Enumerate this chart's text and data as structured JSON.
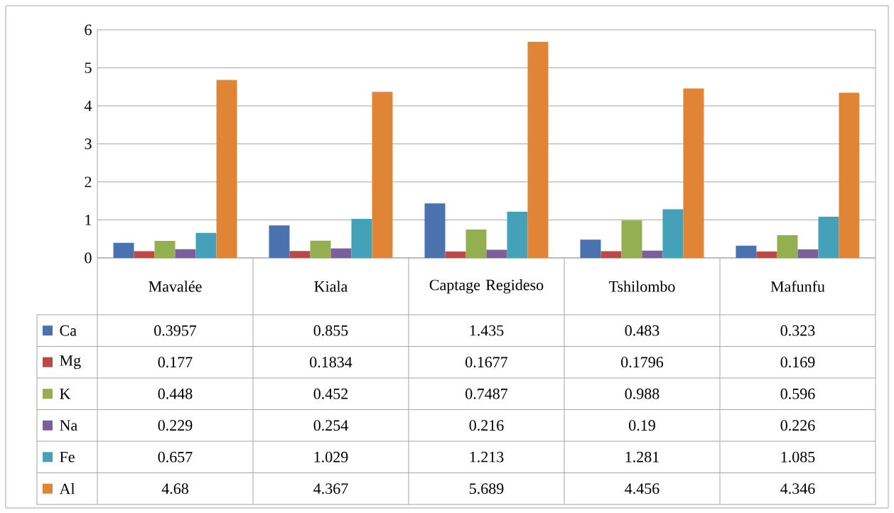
{
  "chart_data": {
    "type": "bar",
    "categories": [
      "Mavalée",
      "Kiala",
      "Captage Regideso",
      "Tshilombo",
      "Mafunfu"
    ],
    "series": [
      {
        "name": "Ca",
        "color": "#4a72af",
        "values": [
          0.3957,
          0.855,
          1.435,
          0.483,
          0.323
        ],
        "value_labels": [
          "0.3957",
          "0.855",
          "1.435",
          "0.483",
          "0.323"
        ]
      },
      {
        "name": "Mg",
        "color": "#b94a47",
        "values": [
          0.177,
          0.1834,
          0.1677,
          0.1796,
          0.169
        ],
        "value_labels": [
          "0.177",
          "0.1834",
          "0.1677",
          "0.1796",
          "0.169"
        ]
      },
      {
        "name": "K",
        "color": "#92b04f",
        "values": [
          0.448,
          0.452,
          0.7487,
          0.988,
          0.596
        ],
        "value_labels": [
          "0.448",
          "0.452",
          "0.7487",
          "0.988",
          "0.596"
        ]
      },
      {
        "name": "Na",
        "color": "#7a5f9a",
        "values": [
          0.229,
          0.254,
          0.216,
          0.19,
          0.226
        ],
        "value_labels": [
          "0.229",
          "0.254",
          "0.216",
          "0.19",
          "0.226"
        ]
      },
      {
        "name": "Fe",
        "color": "#45a1b8",
        "values": [
          0.657,
          1.029,
          1.213,
          1.281,
          1.085
        ],
        "value_labels": [
          "0.657",
          "1.029",
          "1.213",
          "1.281",
          "1.085"
        ]
      },
      {
        "name": "Al",
        "color": "#e08536",
        "values": [
          4.68,
          4.367,
          5.689,
          4.456,
          4.346
        ],
        "value_labels": [
          "4.68",
          "4.367",
          "5.689",
          "4.456",
          "4.346"
        ]
      }
    ],
    "ylim": [
      0,
      6
    ],
    "yticks": [
      0,
      1,
      2,
      3,
      4,
      5,
      6
    ],
    "grid": "y",
    "legend": "bottom"
  }
}
